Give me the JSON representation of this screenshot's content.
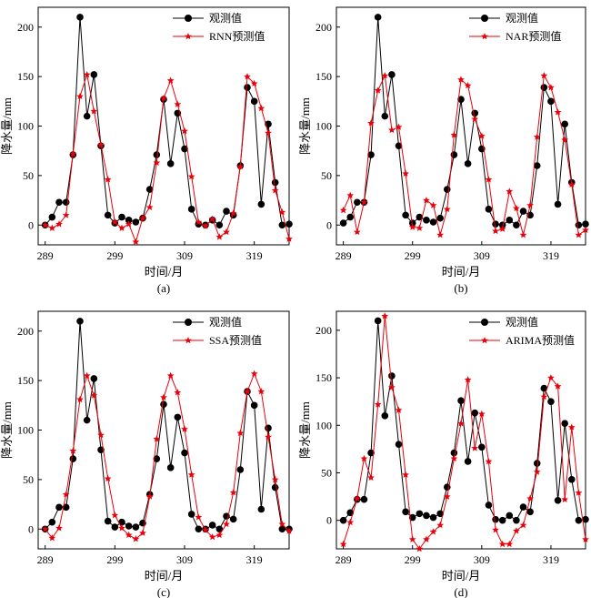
{
  "colors": {
    "observed": "#000000",
    "predicted": "#e8000b"
  },
  "panels": [
    {
      "caption": "(a)",
      "legend": [
        "观测值",
        "RNN预测值"
      ]
    },
    {
      "caption": "(b)",
      "legend": [
        "观测值",
        "NAR预测值"
      ]
    },
    {
      "caption": "(c)",
      "legend": [
        "观测值",
        "SSA预测值"
      ]
    },
    {
      "caption": "(d)",
      "legend": [
        "观测值",
        "ARIMA预测值"
      ]
    }
  ],
  "chart_data": [
    {
      "type": "line",
      "xlabel": "时间/月",
      "ylabel": "降水量/mm",
      "xlim": [
        288,
        324
      ],
      "ylim": [
        -20,
        220
      ],
      "xticks": [
        289,
        299,
        309,
        319
      ],
      "yticks": [
        0,
        50,
        100,
        150,
        200
      ],
      "grid": false,
      "legend_position": "top-right",
      "x": [
        289,
        290,
        291,
        292,
        293,
        294,
        295,
        296,
        297,
        298,
        299,
        300,
        301,
        302,
        303,
        304,
        305,
        306,
        307,
        308,
        309,
        310,
        311,
        312,
        313,
        314,
        315,
        316,
        317,
        318,
        319,
        320,
        321,
        322,
        323,
        324
      ],
      "series": [
        {
          "name": "观测值",
          "marker": "circle",
          "values": [
            0,
            8,
            23,
            23,
            71,
            210,
            110,
            152,
            80,
            10,
            2,
            8,
            5,
            3,
            7,
            36,
            71,
            127,
            62,
            113,
            77,
            16,
            1,
            0,
            5,
            0,
            14,
            10,
            60,
            139,
            125,
            21,
            102,
            43,
            0,
            1
          ]
        },
        {
          "name": "RNN预测值",
          "marker": "star",
          "values": [
            0,
            -3,
            1,
            10,
            72,
            130,
            152,
            115,
            81,
            46,
            3,
            -3,
            1,
            -17,
            7,
            18,
            63,
            128,
            146,
            122,
            95,
            49,
            3,
            -1,
            6,
            -12,
            -7,
            12,
            59,
            150,
            143,
            118,
            93,
            35,
            13,
            -14
          ]
        }
      ]
    },
    {
      "type": "line",
      "xlabel": "时间/月",
      "ylabel": "降水量/mm",
      "xlim": [
        288,
        324
      ],
      "ylim": [
        -20,
        220
      ],
      "xticks": [
        289,
        299,
        309,
        319
      ],
      "yticks": [
        0,
        50,
        100,
        150,
        200
      ],
      "grid": false,
      "legend_position": "top-right",
      "x": [
        289,
        290,
        291,
        292,
        293,
        294,
        295,
        296,
        297,
        298,
        299,
        300,
        301,
        302,
        303,
        304,
        305,
        306,
        307,
        308,
        309,
        310,
        311,
        312,
        313,
        314,
        315,
        316,
        317,
        318,
        319,
        320,
        321,
        322,
        323,
        324
      ],
      "series": [
        {
          "name": "观测值",
          "marker": "circle",
          "values": [
            2,
            8,
            23,
            23,
            71,
            210,
            110,
            152,
            80,
            10,
            2,
            8,
            5,
            3,
            7,
            36,
            71,
            127,
            62,
            113,
            77,
            16,
            1,
            0,
            5,
            0,
            14,
            10,
            60,
            139,
            125,
            21,
            102,
            43,
            0,
            1
          ]
        },
        {
          "name": "NAR预测值",
          "marker": "star",
          "values": [
            15,
            30,
            -7,
            23,
            103,
            136,
            151,
            96,
            99,
            52,
            -2,
            -3,
            25,
            20,
            -10,
            16,
            91,
            147,
            141,
            107,
            90,
            46,
            -6,
            -4,
            34,
            17,
            -10,
            20,
            89,
            151,
            139,
            114,
            86,
            41,
            -10,
            -5
          ]
        }
      ]
    },
    {
      "type": "line",
      "xlabel": "时间/月",
      "ylabel": "降水量/mm",
      "xlim": [
        288,
        324
      ],
      "ylim": [
        -20,
        220
      ],
      "xticks": [
        289,
        299,
        309,
        319
      ],
      "yticks": [
        0,
        50,
        100,
        150,
        200
      ],
      "grid": false,
      "legend_position": "top-right",
      "x": [
        289,
        290,
        291,
        292,
        293,
        294,
        295,
        296,
        297,
        298,
        299,
        300,
        301,
        302,
        303,
        304,
        305,
        306,
        307,
        308,
        309,
        310,
        311,
        312,
        313,
        314,
        315,
        316,
        317,
        318,
        319,
        320,
        321,
        322,
        323,
        324
      ],
      "series": [
        {
          "name": "观测值",
          "marker": "circle",
          "values": [
            0,
            7,
            22,
            22,
            71,
            210,
            110,
            152,
            80,
            8,
            2,
            7,
            3,
            2,
            6,
            35,
            71,
            126,
            62,
            113,
            77,
            15,
            0,
            0,
            4,
            0,
            13,
            10,
            60,
            139,
            125,
            20,
            102,
            42,
            0,
            0
          ]
        },
        {
          "name": "SSA预测值",
          "marker": "star",
          "values": [
            0,
            -9,
            1,
            35,
            79,
            131,
            155,
            135,
            95,
            51,
            14,
            1,
            -6,
            -10,
            -4,
            33,
            91,
            133,
            155,
            138,
            101,
            55,
            12,
            -1,
            -8,
            -6,
            5,
            37,
            97,
            139,
            157,
            139,
            93,
            50,
            5,
            -2
          ]
        }
      ]
    },
    {
      "type": "line",
      "xlabel": "时间/月",
      "ylabel": "降水量/mm",
      "xlim": [
        288,
        324
      ],
      "ylim": [
        -30,
        220
      ],
      "xticks": [
        289,
        299,
        309,
        319
      ],
      "yticks": [
        0,
        50,
        100,
        150,
        200
      ],
      "grid": false,
      "legend_position": "top-right",
      "x": [
        289,
        290,
        291,
        292,
        293,
        294,
        295,
        296,
        297,
        298,
        299,
        300,
        301,
        302,
        303,
        304,
        305,
        306,
        307,
        308,
        309,
        310,
        311,
        312,
        313,
        314,
        315,
        316,
        317,
        318,
        319,
        320,
        321,
        322,
        323,
        324
      ],
      "series": [
        {
          "name": "观测值",
          "marker": "circle",
          "values": [
            0,
            8,
            22,
            22,
            71,
            210,
            110,
            152,
            80,
            9,
            3,
            7,
            5,
            3,
            7,
            35,
            71,
            126,
            62,
            113,
            77,
            16,
            1,
            0,
            5,
            0,
            14,
            9,
            60,
            139,
            125,
            21,
            102,
            43,
            0,
            1
          ]
        },
        {
          "name": "ARIMA预测值",
          "marker": "star",
          "values": [
            -25,
            -2,
            23,
            65,
            45,
            122,
            215,
            140,
            116,
            48,
            -20,
            -30,
            -20,
            -12,
            -5,
            25,
            65,
            102,
            148,
            76,
            112,
            62,
            -10,
            -25,
            -25,
            -11,
            -5,
            23,
            51,
            130,
            150,
            141,
            22,
            98,
            29,
            -20
          ]
        }
      ]
    }
  ]
}
